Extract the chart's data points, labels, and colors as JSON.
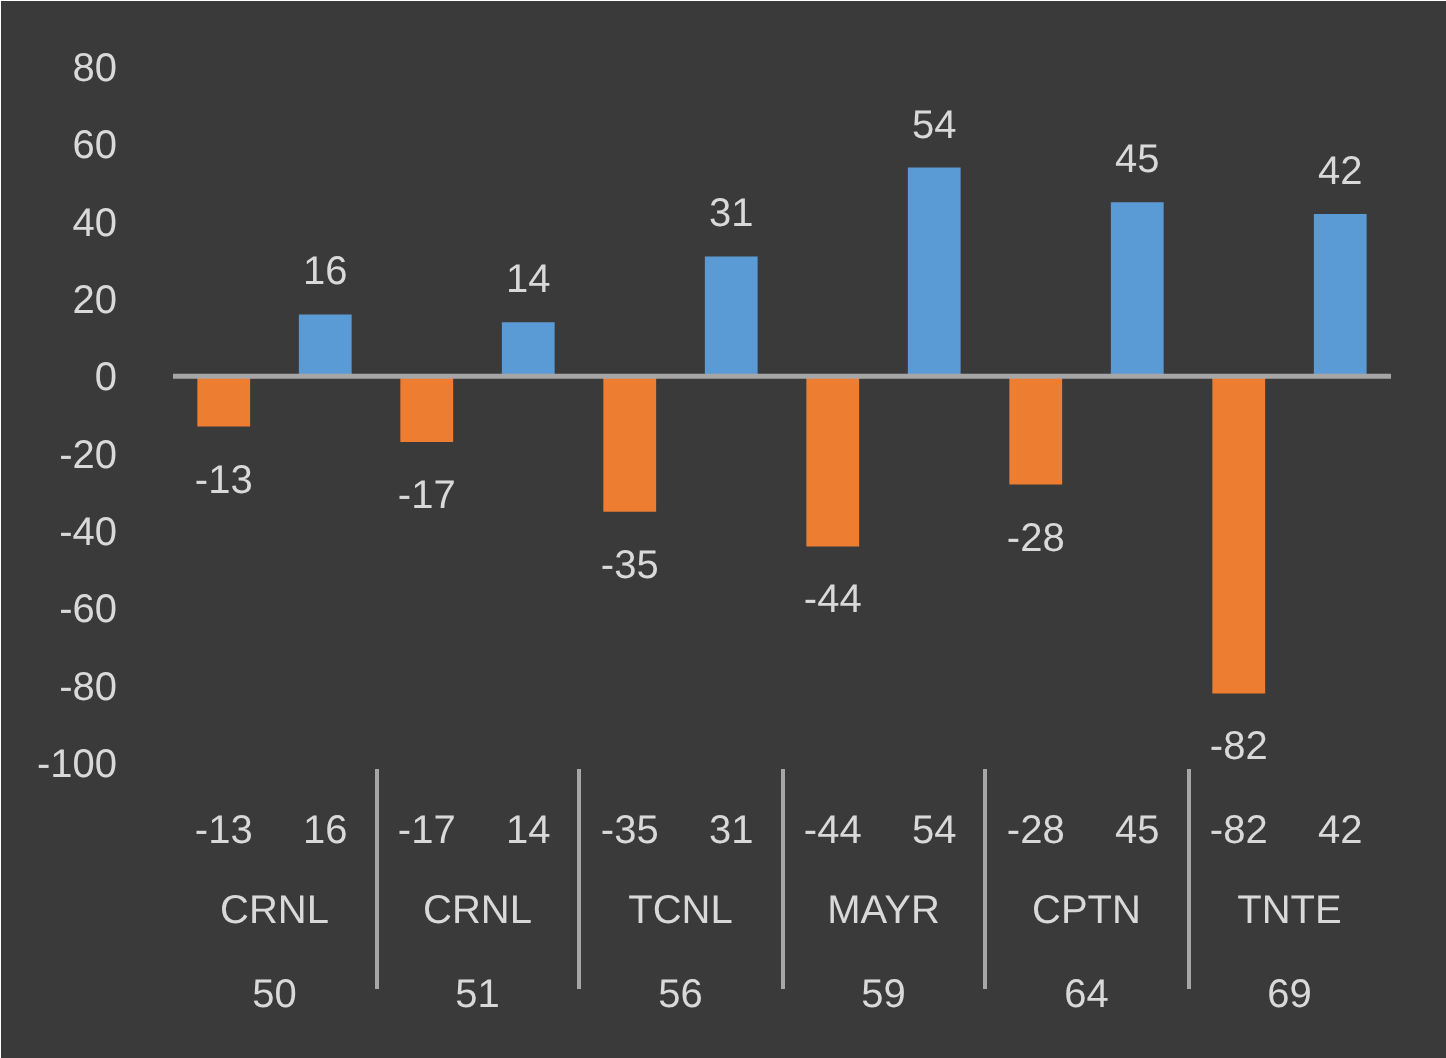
{
  "chart_data": {
    "type": "bar",
    "categories": [
      "-13",
      "16",
      "-17",
      "14",
      "-35",
      "31",
      "-44",
      "54",
      "-28",
      "45",
      "-82",
      "42"
    ],
    "values": [
      -13,
      16,
      -17,
      14,
      -35,
      31,
      -44,
      54,
      -28,
      45,
      -82,
      42
    ],
    "colors": [
      "#ed7d31",
      "#5b9bd5",
      "#ed7d31",
      "#5b9bd5",
      "#ed7d31",
      "#5b9bd5",
      "#ed7d31",
      "#5b9bd5",
      "#ed7d31",
      "#5b9bd5",
      "#ed7d31",
      "#5b9bd5"
    ],
    "annotations": [
      "CRNL\n50",
      "CRNL\n51",
      "TCNL\n56",
      "MAYR\n59",
      "CPTN\n64",
      "TNTE\n69"
    ],
    "ylim": [
      -100,
      80
    ],
    "yticks": [
      -100,
      -80,
      -60,
      -40,
      -20,
      0,
      20,
      40,
      60,
      80
    ],
    "data_labels": true,
    "grid": false,
    "ref_lines": [
      {
        "axis": "y",
        "value": 0,
        "color": "#a6a6a6"
      }
    ]
  }
}
